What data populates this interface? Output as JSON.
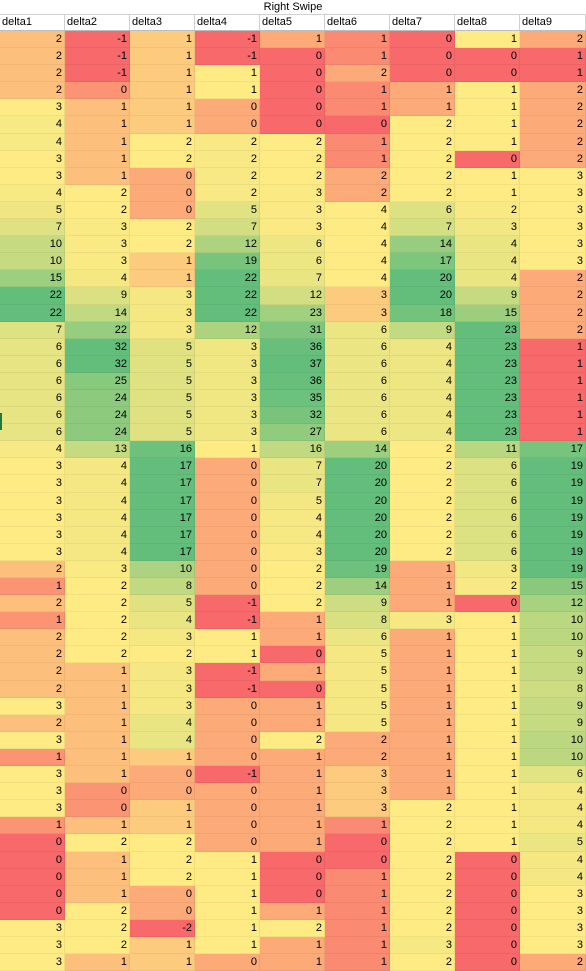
{
  "sheet": {
    "title": "Right Swipe",
    "columns": [
      "delta1",
      "delta2",
      "delta3",
      "delta4",
      "delta5",
      "delta6",
      "delta7",
      "delta8",
      "delta9"
    ],
    "rows": [
      [
        2,
        -1,
        1,
        -1,
        1,
        1,
        0,
        1,
        2
      ],
      [
        2,
        -1,
        1,
        -1,
        0,
        1,
        0,
        0,
        1
      ],
      [
        2,
        -1,
        1,
        1,
        0,
        2,
        0,
        0,
        1
      ],
      [
        2,
        0,
        1,
        1,
        0,
        1,
        1,
        1,
        2
      ],
      [
        3,
        1,
        1,
        0,
        0,
        1,
        1,
        1,
        2
      ],
      [
        4,
        1,
        1,
        0,
        0,
        0,
        2,
        1,
        2
      ],
      [
        4,
        1,
        2,
        2,
        2,
        1,
        2,
        1,
        2
      ],
      [
        3,
        1,
        2,
        2,
        2,
        1,
        2,
        0,
        2
      ],
      [
        3,
        1,
        0,
        2,
        2,
        2,
        2,
        1,
        3
      ],
      [
        4,
        2,
        0,
        2,
        3,
        2,
        2,
        1,
        3
      ],
      [
        5,
        2,
        0,
        5,
        3,
        4,
        6,
        2,
        3
      ],
      [
        7,
        3,
        2,
        7,
        3,
        4,
        7,
        3,
        3
      ],
      [
        10,
        3,
        2,
        12,
        6,
        4,
        14,
        4,
        3
      ],
      [
        10,
        3,
        1,
        19,
        6,
        4,
        17,
        4,
        3
      ],
      [
        15,
        4,
        1,
        22,
        7,
        4,
        20,
        4,
        2
      ],
      [
        22,
        9,
        3,
        22,
        12,
        3,
        20,
        9,
        2
      ],
      [
        22,
        14,
        3,
        22,
        23,
        3,
        18,
        15,
        2
      ],
      [
        7,
        22,
        3,
        12,
        31,
        6,
        9,
        23,
        2
      ],
      [
        6,
        32,
        5,
        3,
        36,
        6,
        4,
        23,
        1
      ],
      [
        6,
        32,
        5,
        3,
        37,
        6,
        4,
        23,
        1
      ],
      [
        6,
        25,
        5,
        3,
        36,
        6,
        4,
        23,
        1
      ],
      [
        6,
        24,
        5,
        3,
        35,
        6,
        4,
        23,
        1
      ],
      [
        6,
        24,
        5,
        3,
        32,
        6,
        4,
        23,
        1
      ],
      [
        6,
        24,
        5,
        3,
        27,
        6,
        4,
        23,
        1
      ],
      [
        4,
        13,
        16,
        1,
        16,
        14,
        2,
        11,
        17
      ],
      [
        3,
        4,
        17,
        0,
        7,
        20,
        2,
        6,
        19
      ],
      [
        3,
        4,
        17,
        0,
        7,
        20,
        2,
        6,
        19
      ],
      [
        3,
        4,
        17,
        0,
        5,
        20,
        2,
        6,
        19
      ],
      [
        3,
        4,
        17,
        0,
        4,
        20,
        2,
        6,
        19
      ],
      [
        3,
        4,
        17,
        0,
        4,
        20,
        2,
        6,
        19
      ],
      [
        3,
        4,
        17,
        0,
        3,
        20,
        2,
        6,
        19
      ],
      [
        2,
        3,
        10,
        0,
        2,
        19,
        1,
        3,
        19
      ],
      [
        1,
        2,
        8,
        0,
        2,
        14,
        1,
        2,
        15
      ],
      [
        2,
        2,
        5,
        -1,
        2,
        9,
        1,
        0,
        12
      ],
      [
        1,
        2,
        4,
        -1,
        1,
        8,
        3,
        1,
        10
      ],
      [
        2,
        2,
        3,
        1,
        1,
        6,
        1,
        1,
        10
      ],
      [
        2,
        2,
        2,
        1,
        0,
        5,
        1,
        1,
        9
      ],
      [
        2,
        1,
        3,
        -1,
        1,
        5,
        1,
        1,
        9
      ],
      [
        2,
        1,
        3,
        -1,
        0,
        5,
        1,
        1,
        8
      ],
      [
        3,
        1,
        3,
        0,
        1,
        5,
        1,
        1,
        9
      ],
      [
        2,
        1,
        4,
        0,
        1,
        5,
        1,
        1,
        9
      ],
      [
        3,
        1,
        4,
        0,
        2,
        2,
        1,
        1,
        10
      ],
      [
        1,
        1,
        1,
        0,
        1,
        2,
        1,
        1,
        10
      ],
      [
        3,
        1,
        0,
        -1,
        1,
        3,
        1,
        1,
        6
      ],
      [
        3,
        0,
        0,
        0,
        1,
        3,
        1,
        1,
        4
      ],
      [
        3,
        0,
        1,
        0,
        1,
        3,
        2,
        1,
        4
      ],
      [
        1,
        1,
        1,
        0,
        1,
        1,
        2,
        1,
        4
      ],
      [
        0,
        2,
        2,
        0,
        1,
        0,
        2,
        1,
        5
      ],
      [
        0,
        1,
        2,
        1,
        0,
        0,
        2,
        0,
        4
      ],
      [
        0,
        1,
        2,
        1,
        0,
        1,
        2,
        0,
        4
      ],
      [
        0,
        1,
        0,
        1,
        0,
        1,
        2,
        0,
        3
      ],
      [
        0,
        2,
        0,
        1,
        1,
        1,
        2,
        0,
        3
      ],
      [
        3,
        2,
        -2,
        1,
        2,
        1,
        2,
        0,
        3
      ],
      [
        3,
        2,
        1,
        1,
        1,
        1,
        3,
        0,
        3
      ],
      [
        3,
        1,
        1,
        0,
        1,
        1,
        2,
        0,
        2
      ]
    ]
  },
  "colors": {
    "low": "#f8696b",
    "mid": "#ffeb84",
    "high": "#63be7b"
  }
}
